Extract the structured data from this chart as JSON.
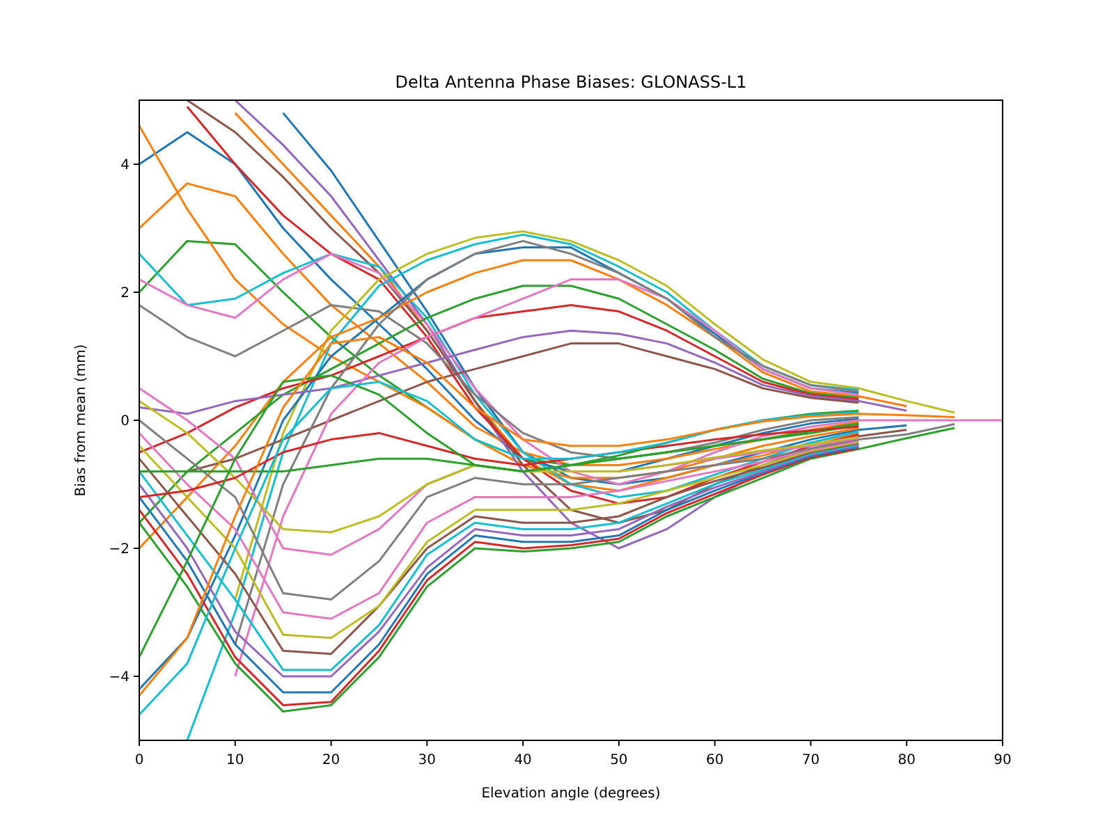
{
  "chart_data": {
    "type": "line",
    "title": "Delta Antenna Phase Biases: GLONASS-L1",
    "xlabel": "Elevation angle (degrees)",
    "ylabel": "Bias from mean (mm)",
    "x": [
      0,
      5,
      10,
      15,
      20,
      25,
      30,
      35,
      40,
      45,
      50,
      55,
      60,
      65,
      70,
      75,
      80,
      85,
      90
    ],
    "xlim": [
      0,
      90
    ],
    "xticks": [
      0,
      10,
      20,
      30,
      40,
      50,
      60,
      70,
      80,
      90
    ],
    "ylim": [
      -5,
      5
    ],
    "yticks": [
      -4,
      -2,
      0,
      2,
      4
    ],
    "series": [
      {
        "color": "#1f77b4",
        "values": [
          null,
          null,
          null,
          4.8,
          3.9,
          2.8,
          1.7,
          0.5,
          -0.5,
          -0.9,
          -1.0,
          -0.9,
          -0.7,
          -0.5,
          -0.3,
          -0.15,
          -0.08,
          null,
          null
        ]
      },
      {
        "color": "#ff7f0e",
        "values": [
          null,
          null,
          4.8,
          4.0,
          3.2,
          2.4,
          1.4,
          0.3,
          -0.6,
          -1.0,
          -1.1,
          -0.9,
          -0.7,
          -0.55,
          -0.35,
          -0.2,
          null,
          null,
          null
        ]
      },
      {
        "color": "#1f77b4",
        "values": [
          4.0,
          4.5,
          4.0,
          3.0,
          2.2,
          1.5,
          0.8,
          0,
          -0.6,
          -0.8,
          -0.8,
          -0.6,
          -0.4,
          -0.2,
          -0.05,
          0.025,
          null,
          null,
          null
        ]
      },
      {
        "color": "#ff7f0e",
        "values": [
          3.0,
          3.7,
          3.5,
          2.6,
          1.8,
          1.2,
          0.6,
          -0.1,
          -0.5,
          -0.7,
          -0.7,
          -0.6,
          -0.45,
          -0.3,
          -0.15,
          -0.025,
          null,
          null,
          null
        ]
      },
      {
        "color": "#2ca02c",
        "values": [
          2.0,
          2.8,
          2.75,
          2.0,
          1.3,
          0.7,
          0.2,
          -0.3,
          -0.6,
          -0.7,
          -0.6,
          -0.5,
          -0.4,
          -0.3,
          -0.17,
          -0.05,
          null,
          null,
          null
        ]
      },
      {
        "color": "#ff7f0e",
        "values": [
          4.6,
          3.3,
          2.2,
          1.5,
          1.0,
          0.6,
          0.2,
          -0.3,
          -0.7,
          -0.9,
          -0.9,
          -0.8,
          -0.6,
          -0.4,
          -0.25,
          -0.125,
          null,
          null,
          null
        ]
      },
      {
        "color": "#9467bd",
        "values": [
          null,
          null,
          5.0,
          4.3,
          3.5,
          2.5,
          1.5,
          0.3,
          -0.8,
          -1.6,
          -2.0,
          -1.7,
          -1.2,
          -0.8,
          -0.5,
          -0.275,
          null,
          null,
          null
        ]
      },
      {
        "color": "#8c564b",
        "values": [
          null,
          5.0,
          4.5,
          3.8,
          3.0,
          2.3,
          1.4,
          0.3,
          -0.7,
          -1.4,
          -1.6,
          -1.4,
          -1.0,
          -0.7,
          -0.45,
          -0.25,
          -0.15,
          null,
          null
        ]
      },
      {
        "color": "#d62728",
        "values": [
          null,
          4.9,
          4.0,
          3.2,
          2.6,
          2.2,
          1.3,
          0.2,
          -0.6,
          -1.1,
          -1.3,
          -1.2,
          -0.9,
          -0.65,
          -0.4,
          -0.225,
          null,
          null,
          null
        ]
      },
      {
        "color": "#17becf",
        "values": [
          2.6,
          1.8,
          1.9,
          2.3,
          2.6,
          2.4,
          1.6,
          0.4,
          -0.5,
          -1.0,
          -1.2,
          -1.1,
          -0.85,
          -0.6,
          -0.35,
          -0.175,
          null,
          null,
          null
        ]
      },
      {
        "color": "#e377c2",
        "values": [
          2.2,
          1.8,
          1.6,
          2.2,
          2.6,
          2.3,
          1.5,
          0.5,
          -0.3,
          -0.8,
          -1.0,
          -0.8,
          -0.5,
          -0.25,
          -0.1,
          0,
          0,
          0,
          0
        ]
      },
      {
        "color": "#7f7f7f",
        "values": [
          1.8,
          1.3,
          1.0,
          1.4,
          1.8,
          1.7,
          1.2,
          0.4,
          -0.2,
          -0.5,
          -0.6,
          -0.5,
          -0.35,
          -0.15,
          0,
          0.05,
          null,
          null,
          null
        ]
      },
      {
        "color": "#bcbd22",
        "values": [
          null,
          null,
          -2.8,
          -0.2,
          1.4,
          2.2,
          2.6,
          2.85,
          2.95,
          2.8,
          2.5,
          2.1,
          1.5,
          0.95,
          0.6,
          0.5,
          0.3,
          0.12,
          null
        ]
      },
      {
        "color": "#17becf",
        "values": [
          null,
          -5.0,
          -3.0,
          -0.5,
          1.2,
          2.1,
          2.5,
          2.75,
          2.9,
          2.75,
          2.4,
          2.0,
          1.4,
          0.85,
          0.55,
          0.475,
          null,
          null,
          null
        ]
      },
      {
        "color": "#1f77b4",
        "values": [
          -4.2,
          -3.4,
          -1.8,
          0,
          1.0,
          1.6,
          2.2,
          2.6,
          2.7,
          2.7,
          2.3,
          1.9,
          1.35,
          0.8,
          0.5,
          0.425,
          null,
          null,
          null
        ]
      },
      {
        "color": "#ff7f0e",
        "values": [
          -2.0,
          -1.2,
          -0.4,
          0.6,
          1.3,
          1.6,
          2.0,
          2.3,
          2.5,
          2.5,
          2.2,
          1.8,
          1.3,
          0.75,
          0.45,
          0.375,
          0.22,
          null,
          null
        ]
      },
      {
        "color": "#2ca02c",
        "values": [
          -1.6,
          -0.8,
          -0.2,
          0.4,
          0.8,
          1.2,
          1.6,
          1.9,
          2.1,
          2.1,
          1.9,
          1.5,
          1.1,
          0.65,
          0.42,
          0.35,
          null,
          null,
          null
        ]
      },
      {
        "color": "#d62728",
        "values": [
          -0.5,
          -0.2,
          0.2,
          0.5,
          0.7,
          1.0,
          1.3,
          1.6,
          1.7,
          1.8,
          1.7,
          1.4,
          1.0,
          0.6,
          0.4,
          0.325,
          null,
          null,
          null
        ]
      },
      {
        "color": "#9467bd",
        "values": [
          0.2,
          0.1,
          0.3,
          0.4,
          0.5,
          0.7,
          0.9,
          1.1,
          1.3,
          1.4,
          1.35,
          1.2,
          0.9,
          0.55,
          0.38,
          0.3,
          0.15,
          null,
          null
        ]
      },
      {
        "color": "#8c564b",
        "values": [
          -0.8,
          -0.8,
          -0.6,
          -0.3,
          0,
          0.3,
          0.6,
          0.8,
          1.0,
          1.2,
          1.2,
          1.0,
          0.8,
          0.5,
          0.35,
          0.275,
          null,
          null,
          null
        ]
      },
      {
        "color": "#e377c2",
        "values": [
          null,
          null,
          -4.0,
          -1.5,
          0.1,
          0.9,
          1.3,
          1.6,
          1.9,
          2.2,
          2.2,
          1.9,
          1.4,
          0.8,
          0.5,
          0.4,
          null,
          null,
          null
        ]
      },
      {
        "color": "#7f7f7f",
        "values": [
          null,
          null,
          -3.5,
          -1.0,
          0.5,
          1.5,
          2.2,
          2.6,
          2.8,
          2.6,
          2.3,
          1.9,
          1.3,
          0.85,
          0.55,
          0.45,
          null,
          null,
          null
        ]
      },
      {
        "color": "#2ca02c",
        "values": [
          -1.6,
          -2.6,
          -3.8,
          -4.55,
          -4.45,
          -3.7,
          -2.6,
          -2.0,
          -2.05,
          -2.0,
          -1.9,
          -1.5,
          -1.2,
          -0.9,
          -0.6,
          -0.45,
          -0.28,
          -0.12,
          null
        ]
      },
      {
        "color": "#d62728",
        "values": [
          -1.4,
          -2.4,
          -3.7,
          -4.45,
          -4.4,
          -3.6,
          -2.5,
          -1.9,
          -2.0,
          -1.95,
          -1.85,
          -1.45,
          -1.15,
          -0.85,
          -0.58,
          -0.44,
          null,
          null,
          null
        ]
      },
      {
        "color": "#1f77b4",
        "values": [
          -1.2,
          -2.2,
          -3.5,
          -4.25,
          -4.25,
          -3.5,
          -2.4,
          -1.8,
          -1.9,
          -1.9,
          -1.8,
          -1.4,
          -1.1,
          -0.82,
          -0.56,
          -0.42,
          null,
          null,
          null
        ]
      },
      {
        "color": "#9467bd",
        "values": [
          -1.0,
          -2.0,
          -3.3,
          -4.0,
          -4.0,
          -3.3,
          -2.3,
          -1.7,
          -1.8,
          -1.8,
          -1.7,
          -1.35,
          -1.05,
          -0.8,
          -0.54,
          -0.4,
          null,
          null,
          null
        ]
      },
      {
        "color": "#17becf",
        "values": [
          -0.8,
          -1.8,
          -2.8,
          -3.9,
          -3.9,
          -3.2,
          -2.1,
          -1.6,
          -1.7,
          -1.7,
          -1.6,
          -1.3,
          -1.0,
          -0.77,
          -0.52,
          -0.38,
          null,
          null,
          null
        ]
      },
      {
        "color": "#8c564b",
        "values": [
          -0.6,
          -1.5,
          -2.4,
          -3.6,
          -3.65,
          -2.9,
          -2.0,
          -1.5,
          -1.6,
          -1.6,
          -1.5,
          -1.2,
          -0.95,
          -0.74,
          -0.5,
          -0.36,
          null,
          null,
          null
        ]
      },
      {
        "color": "#bcbd22",
        "values": [
          -0.4,
          -1.2,
          -2.0,
          -3.35,
          -3.4,
          -2.9,
          -1.9,
          -1.4,
          -1.4,
          -1.4,
          -1.3,
          -1.1,
          -0.9,
          -0.7,
          -0.48,
          -0.34,
          null,
          null,
          null
        ]
      },
      {
        "color": "#e377c2",
        "values": [
          -0.2,
          -1.0,
          -1.7,
          -3.0,
          -3.1,
          -2.7,
          -1.6,
          -1.2,
          -1.2,
          -1.2,
          -1.1,
          -0.95,
          -0.8,
          -0.65,
          -0.46,
          -0.32,
          null,
          null,
          null
        ]
      },
      {
        "color": "#7f7f7f",
        "values": [
          0,
          -0.6,
          -1.2,
          -2.7,
          -2.8,
          -2.2,
          -1.2,
          -0.9,
          -1.0,
          -1.0,
          -0.9,
          -0.8,
          -0.7,
          -0.6,
          -0.44,
          -0.3,
          -0.22,
          -0.06,
          null
        ]
      },
      {
        "color": "#e377c2",
        "values": [
          0.5,
          0,
          -0.6,
          -2.0,
          -2.1,
          -1.7,
          -1.0,
          -0.7,
          -0.8,
          -0.8,
          -0.8,
          -0.7,
          -0.6,
          -0.5,
          -0.4,
          -0.28,
          null,
          null,
          null
        ]
      },
      {
        "color": "#bcbd22",
        "values": [
          0.3,
          -0.2,
          -0.9,
          -1.7,
          -1.75,
          -1.5,
          -1.0,
          -0.7,
          -0.8,
          -0.8,
          -0.8,
          -0.7,
          -0.58,
          -0.47,
          -0.38,
          -0.26,
          null,
          null,
          null
        ]
      },
      {
        "color": "#2ca02c",
        "values": [
          -0.8,
          -0.8,
          -0.8,
          -0.8,
          -0.7,
          -0.6,
          -0.6,
          -0.7,
          -0.8,
          -0.7,
          -0.6,
          -0.5,
          -0.4,
          -0.3,
          -0.2,
          -0.075,
          null,
          null,
          null
        ]
      },
      {
        "color": "#d62728",
        "values": [
          -1.2,
          -1.1,
          -0.9,
          -0.5,
          -0.3,
          -0.2,
          -0.4,
          -0.6,
          -0.7,
          -0.6,
          -0.5,
          -0.4,
          -0.3,
          -0.22,
          -0.16,
          -0.1,
          null,
          null,
          null
        ]
      },
      {
        "color": "#2ca02c",
        "values": [
          -3.7,
          -2.2,
          -0.6,
          0.6,
          0.7,
          0.4,
          -0.2,
          -0.7,
          -0.8,
          -0.7,
          -0.55,
          -0.35,
          -0.15,
          0,
          0.1,
          0.15,
          null,
          null,
          null
        ]
      },
      {
        "color": "#17becf",
        "values": [
          -4.6,
          -3.8,
          -2.0,
          -0.3,
          0.5,
          0.6,
          0.3,
          -0.3,
          -0.6,
          -0.6,
          -0.5,
          -0.35,
          -0.15,
          0,
          0.08,
          0.125,
          null,
          null,
          null
        ]
      },
      {
        "color": "#ff7f0e",
        "values": [
          -4.3,
          -3.4,
          -1.5,
          0.2,
          1.2,
          1.3,
          0.9,
          0.2,
          -0.3,
          -0.4,
          -0.4,
          -0.3,
          -0.15,
          -0.02,
          0.06,
          0.1,
          0.08,
          0.05,
          null
        ]
      }
    ]
  }
}
